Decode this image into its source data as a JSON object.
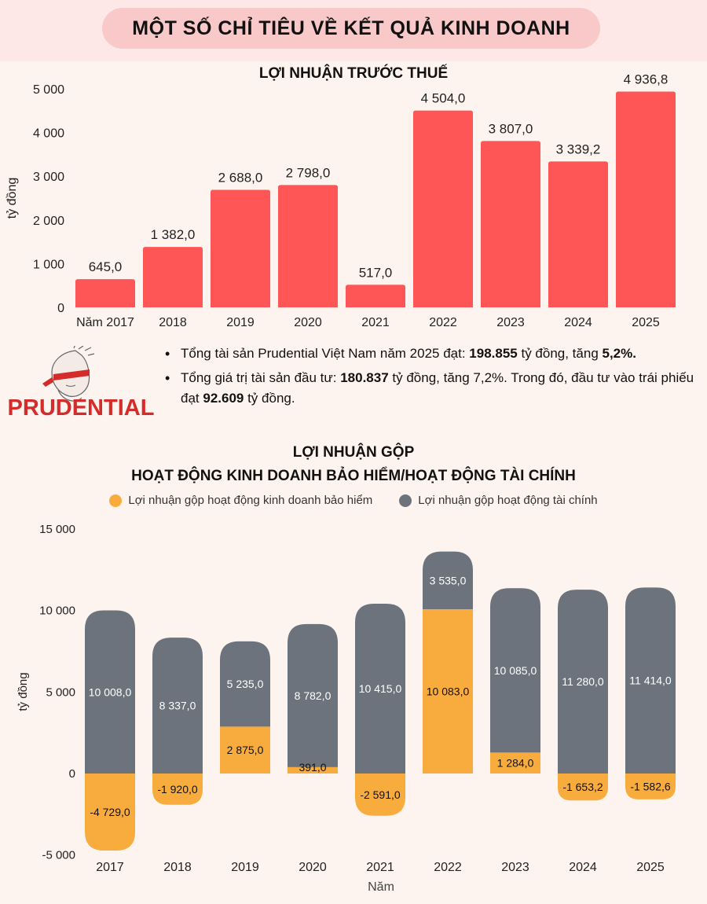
{
  "header": {
    "title": "MỘT SỐ CHỈ TIÊU VỀ KẾT QUẢ KINH DOANH"
  },
  "chart1": {
    "title": "LỢI NHUẬN TRƯỚC THUẾ",
    "ylabel": "tỷ đồng",
    "ytick_labels": [
      "0",
      "1 000",
      "2 000",
      "3 000",
      "4 000",
      "5 000"
    ]
  },
  "info": {
    "logo_text": "PRUDENTIAL",
    "bullet1": {
      "pre": " Tổng tài sản Prudential Việt Nam năm 2025 đạt: ",
      "bold1": "198.855",
      "mid": " tỷ đồng, tăng ",
      "bold2": "5,2%."
    },
    "bullet2": {
      "pre": "Tổng giá trị tài sản đầu tư: ",
      "bold1": "180.837",
      "mid": " tỷ đồng, tăng 7,2%. Trong đó, đầu tư vào trái phiếu đạt ",
      "bold2": "92.609",
      "post": " tỷ đồng."
    }
  },
  "chart2": {
    "title_line1": "LỢI NHUẬN GỘP",
    "title_line2": "HOẠT ĐỘNG KINH DOANH BẢO HIỂM/HOẠT ĐỘNG TÀI CHÍNH",
    "xlabel": "Năm",
    "ylabel": "tỷ đồng",
    "ytick_labels": [
      "-5 000",
      "0",
      "5 000",
      "10 000",
      "15 000"
    ]
  },
  "colors": {
    "bar1": "#fe5656",
    "insurance": "#f9ac3e",
    "financial": "#6c737c",
    "pill": "#f9c9c9"
  },
  "chart_data": [
    {
      "type": "bar",
      "title": "LỢI NHUẬN TRƯỚC THUẾ",
      "ylabel": "tỷ đồng",
      "categories": [
        "Năm 2017",
        "2018",
        "2019",
        "2020",
        "2021",
        "2022",
        "2023",
        "2024",
        "2025"
      ],
      "values": [
        645.0,
        1382.0,
        2688.0,
        2798.0,
        517.0,
        4504.0,
        3807.0,
        3339.2,
        4936.8
      ],
      "labels": [
        "645,0",
        "1 382,0",
        "2 688,0",
        "2 798,0",
        "517,0",
        "4 504,0",
        "3 807,0",
        "3 339,2",
        "4 936,8"
      ],
      "ylim": [
        0,
        5000
      ],
      "grid": false
    },
    {
      "type": "bar",
      "stacked": true,
      "title": "LỢI NHUẬN GỘP HOẠT ĐỘNG KINH DOANH BẢO HIỂM/HOẠT ĐỘNG TÀI CHÍNH",
      "xlabel": "Năm",
      "ylabel": "tỷ đồng",
      "categories": [
        "2017",
        "2018",
        "2019",
        "2020",
        "2021",
        "2022",
        "2023",
        "2024",
        "2025"
      ],
      "series": [
        {
          "name": "Lợi nhuận gộp hoạt động kinh doanh bảo hiểm",
          "values": [
            -4729.0,
            -1920.0,
            2875.0,
            391.0,
            -2591.0,
            10083.0,
            1284.0,
            -1653.2,
            -1582.6
          ],
          "labels": [
            "-4 729,0",
            "-1 920,0",
            "2 875,0",
            "391,0",
            "-2 591,0",
            "10 083,0",
            "1 284,0",
            "-1 653,2",
            "-1 582,6"
          ]
        },
        {
          "name": "Lợi nhuận gộp hoạt động tài chính",
          "values": [
            10008.0,
            8337.0,
            5235.0,
            8782.0,
            10415.0,
            3535.0,
            10085.0,
            11280.0,
            11414.0
          ],
          "labels": [
            "10 008,0",
            "8 337,0",
            "5 235,0",
            "8 782,0",
            "10 415,0",
            "3 535,0",
            "10 085,0",
            "11 280,0",
            "11 414,0"
          ]
        }
      ],
      "ylim": [
        -5000,
        15000
      ],
      "legend": "top",
      "grid": false
    }
  ]
}
